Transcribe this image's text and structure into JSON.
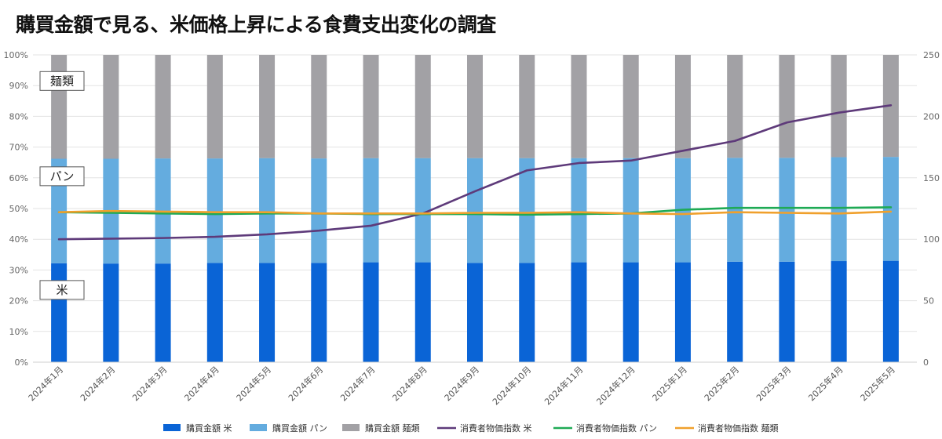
{
  "title": "購買金額で見る、米価格上昇による食費支出変化の調査",
  "chart_data": {
    "type": "bar",
    "stacked": true,
    "categories": [
      "2024年1月",
      "2024年2月",
      "2024年3月",
      "2024年4月",
      "2024年5月",
      "2024年6月",
      "2024年7月",
      "2024年8月",
      "2024年9月",
      "2024年10月",
      "2024年11月",
      "2024年12月",
      "2025年1月",
      "2025年2月",
      "2025年3月",
      "2025年4月",
      "2025年5月"
    ],
    "y_left": {
      "ylim": [
        0,
        100
      ],
      "ticks": [
        "0%",
        "10%",
        "20%",
        "30%",
        "40%",
        "50%",
        "60%",
        "70%",
        "80%",
        "90%",
        "100%"
      ]
    },
    "y_right": {
      "ylim": [
        0,
        250
      ],
      "ticks": [
        "0",
        "50",
        "100",
        "150",
        "200",
        "250"
      ]
    },
    "bar_series": [
      {
        "name": "購買金額 米",
        "color": "#0a64d6",
        "values": [
          32.2,
          32.1,
          32.1,
          32.3,
          32.3,
          32.3,
          32.5,
          32.5,
          32.3,
          32.3,
          32.5,
          32.5,
          32.5,
          32.7,
          32.7,
          32.9,
          33.0
        ]
      },
      {
        "name": "購買金額 パン",
        "color": "#64acdf",
        "values": [
          34.0,
          34.1,
          34.2,
          34.0,
          34.1,
          34.0,
          33.9,
          33.9,
          34.1,
          34.1,
          33.9,
          33.9,
          33.9,
          33.8,
          33.8,
          33.8,
          33.8
        ]
      },
      {
        "name": "購買金額 麺類",
        "color": "#a2a1a5",
        "values": [
          33.8,
          33.8,
          33.7,
          33.7,
          33.6,
          33.7,
          33.6,
          33.6,
          33.6,
          33.6,
          33.6,
          33.6,
          33.6,
          33.5,
          33.5,
          33.3,
          33.2
        ]
      }
    ],
    "line_series": [
      {
        "name": "消費者物価指数 米",
        "color": "#5e3a7a",
        "axis": "right",
        "values": [
          100,
          100.5,
          101,
          102,
          104,
          107,
          111,
          121,
          139,
          156,
          162,
          164,
          172,
          180,
          195,
          203,
          209
        ]
      },
      {
        "name": "消費者物価指数 パン",
        "color": "#1faa55",
        "axis": "right",
        "values": [
          122,
          121.5,
          121,
          120.5,
          121,
          121,
          120.5,
          120.5,
          120.5,
          120,
          120.5,
          121,
          124,
          125.5,
          125.5,
          125.5,
          126
        ]
      },
      {
        "name": "消費者物価指数 麺類",
        "color": "#f0a02c",
        "axis": "right",
        "values": [
          122,
          123,
          122.5,
          122,
          122,
          121,
          121,
          121,
          121.5,
          121.5,
          122,
          121,
          120.5,
          122,
          121.5,
          121,
          122.5
        ]
      }
    ],
    "annotations": [
      {
        "label": "麺類",
        "y_percent": 91.5
      },
      {
        "label": "パン",
        "y_percent": 60.5
      },
      {
        "label": "米",
        "y_percent": 23.5
      }
    ],
    "legend_position": "bottom",
    "grid": true
  }
}
